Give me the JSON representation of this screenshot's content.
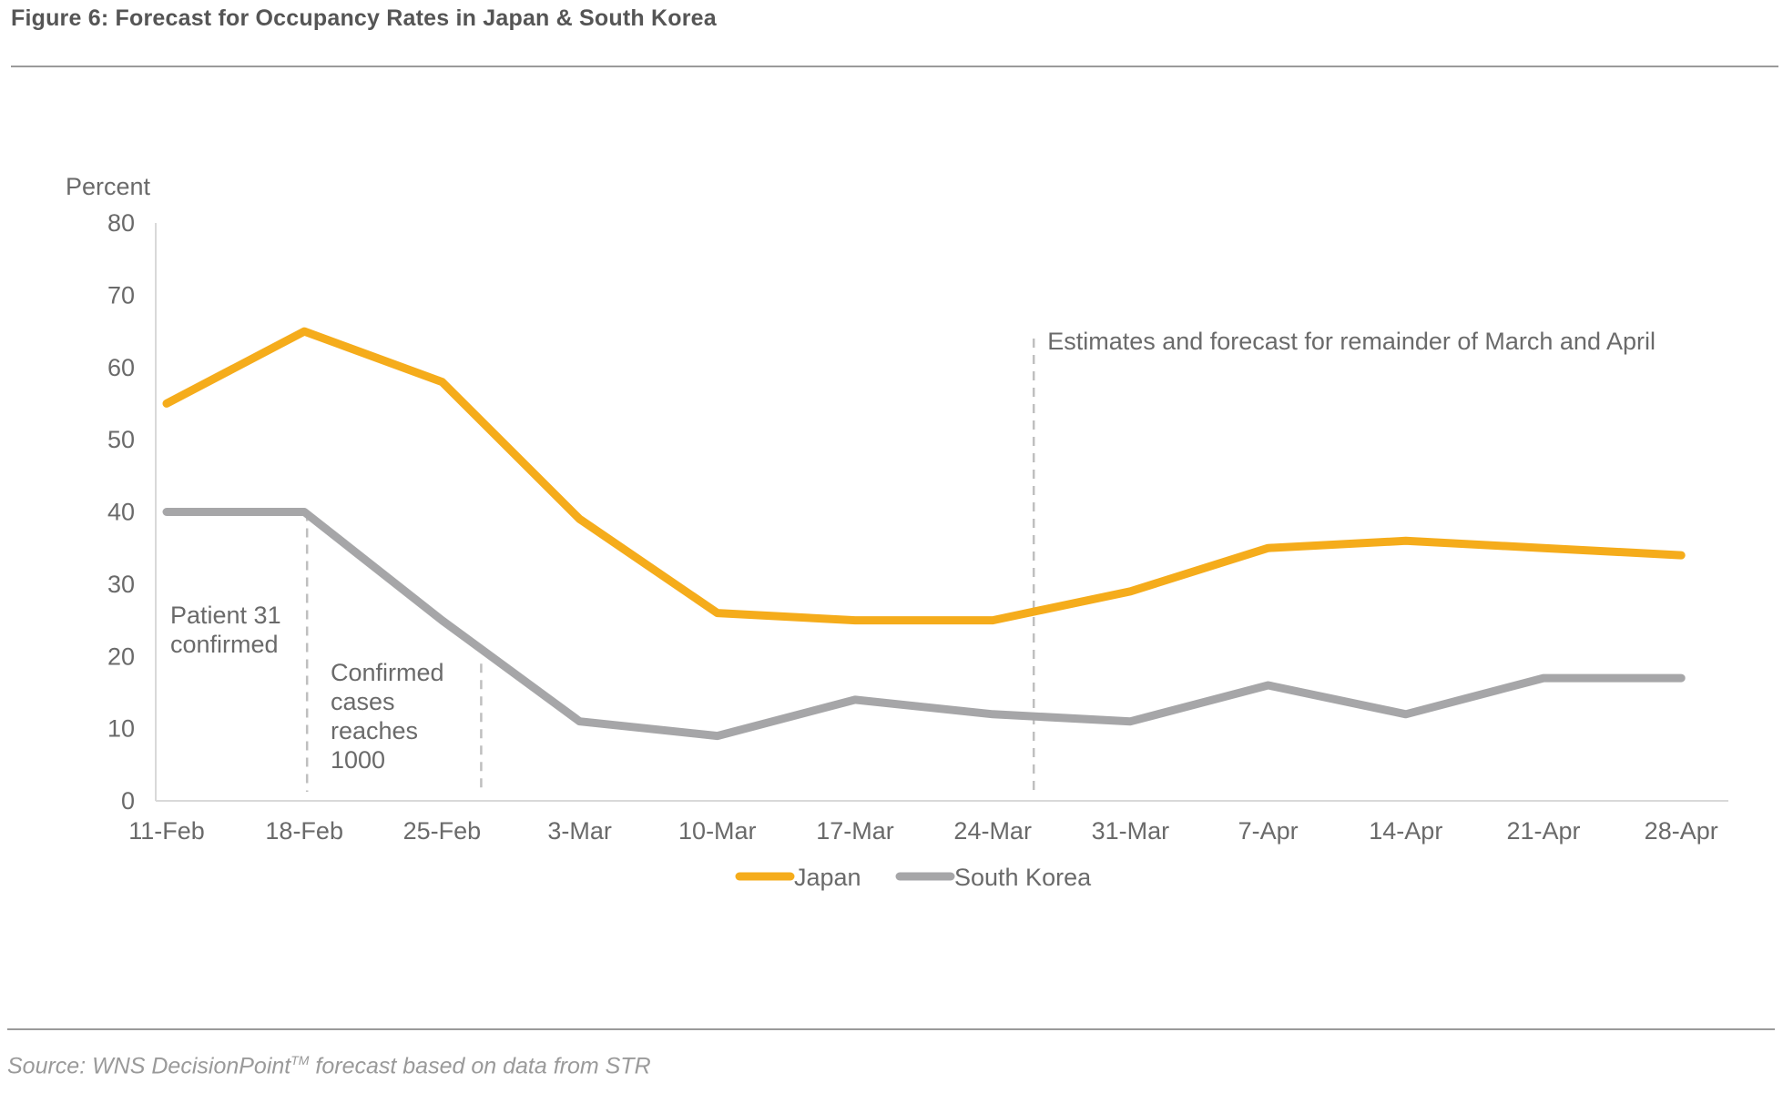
{
  "figure": {
    "title": "Figure 6: Forecast for Occupancy Rates in Japan & South Korea",
    "source_prefix": "Source: WNS DecisionPoint",
    "source_tm": "TM",
    "source_suffix": " forecast based on data from STR"
  },
  "chart_data": {
    "type": "line",
    "title": "Figure 6: Forecast for Occupancy Rates in Japan & South Korea",
    "ylabel": "Percent",
    "xlabel": "",
    "ylim": [
      0,
      80
    ],
    "yticks": [
      0,
      10,
      20,
      30,
      40,
      50,
      60,
      70,
      80
    ],
    "categories": [
      "11-Feb",
      "18-Feb",
      "25-Feb",
      "3-Mar",
      "10-Mar",
      "17-Mar",
      "24-Mar",
      "31-Mar",
      "7-Apr",
      "14-Apr",
      "21-Apr",
      "28-Apr"
    ],
    "series": [
      {
        "name": "Japan",
        "color": "#f5ac1b",
        "values": [
          55,
          65,
          58,
          39,
          26,
          25,
          25,
          29,
          35,
          36,
          35,
          34
        ]
      },
      {
        "name": "South Korea",
        "color": "#a6a6a8",
        "values": [
          40,
          40,
          25,
          11,
          9,
          14,
          12,
          11,
          16,
          12,
          17,
          17
        ]
      }
    ],
    "annotations": [
      {
        "id": "patient31",
        "lines": [
          "Patient 31",
          "confirmed"
        ],
        "x_category": "18-Feb",
        "y_top": 40
      },
      {
        "id": "cases1000",
        "lines": [
          "Confirmed",
          "cases",
          "reaches",
          "1000"
        ],
        "x_category": "25-Feb",
        "y_top": 19
      },
      {
        "id": "forecast",
        "lines": [
          "Estimates and forecast for remainder of March and April"
        ],
        "x_category": "24-Mar",
        "y_top": 64
      }
    ],
    "legend": {
      "placement": "bottom-center",
      "entries": [
        "Japan",
        "South Korea"
      ]
    },
    "grid": false
  }
}
